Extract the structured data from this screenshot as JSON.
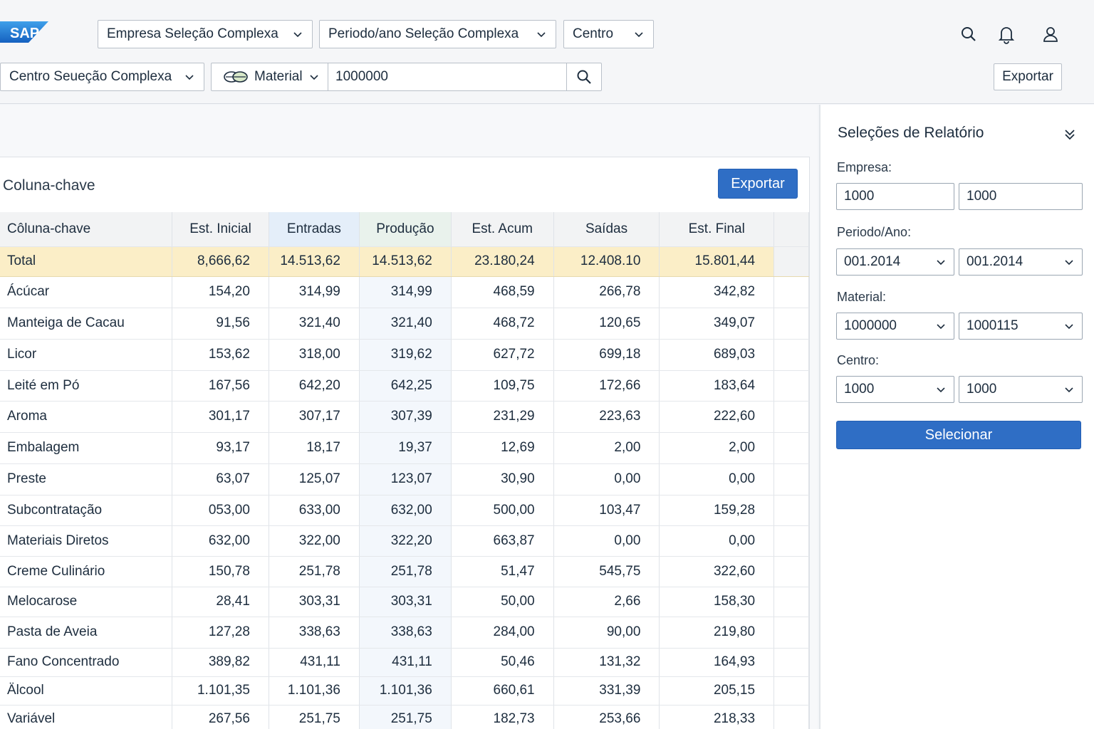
{
  "header": {
    "logo_text": "SAP",
    "filters": [
      {
        "label": "Empresa Seleção Complexa"
      },
      {
        "label": "Periodo/ano Seleção Complexa"
      },
      {
        "label": "Centro"
      }
    ],
    "center_filter": "Centro Seueção Complexa",
    "material_label": "Material",
    "material_value": "1000000",
    "export_label": "Exportar"
  },
  "main": {
    "title": "Coluna-chave",
    "export_label": "Exportar",
    "table": {
      "headers": [
        "Côluna-chave",
        "Est. Inicial",
        "Entradas",
        "Produção",
        "Est. Acum",
        "Saídas",
        "Est. Final"
      ],
      "total": [
        "Total",
        "8,666,62",
        "14.513,62",
        "14.513,62",
        "23.180,24",
        "12.408.10",
        "15.801,44"
      ],
      "rows": [
        [
          "Ácúcar",
          "154,20",
          "314,99",
          "314,99",
          "468,59",
          "266,78",
          "342,82"
        ],
        [
          "Manteiga de Cacau",
          "91,56",
          "321,40",
          "321,40",
          "468,72",
          "120,65",
          "349,07"
        ],
        [
          "Licor",
          "153,62",
          "318,00",
          "319,62",
          "627,72",
          "699,18",
          "689,03"
        ],
        [
          "Leité em Pó",
          "167,56",
          "642,20",
          "642,25",
          "109,75",
          "172,66",
          "183,64"
        ],
        [
          "Aroma",
          "301,17",
          "307,17",
          "307,39",
          "231,29",
          "223,63",
          "222,60"
        ],
        [
          "Embalagem",
          "93,17",
          "18,17",
          "19,37",
          "12,69",
          "2,00",
          "2,00"
        ],
        [
          "Preste",
          "63,07",
          "125,07",
          "123,07",
          "30,90",
          "0,00",
          "0,00"
        ],
        [
          "Subcontratação",
          "053,00",
          "633,00",
          "632,00",
          "500,00",
          "103,47",
          "159,28"
        ],
        [
          "Materiais Diretos",
          "632,00",
          "322,00",
          "322,20",
          "663,87",
          "0,00",
          "0,00"
        ],
        [
          "Creme Culinário",
          "150,78",
          "251,78",
          "251,78",
          "51,47",
          "545,75",
          "322,60"
        ],
        [
          "Melocarose",
          "28,41",
          "303,31",
          "303,31",
          "50,00",
          "2,66",
          "158,30"
        ],
        [
          "Pasta de Aveia",
          "127,28",
          "338,63",
          "338,63",
          "284,00",
          "90,00",
          "219,80"
        ],
        [
          "Fano Concentrado",
          "389,82",
          "431,11",
          "431,11",
          "50,46",
          "131,32",
          "164,93"
        ],
        [
          "Älcool",
          "1.101,35",
          "1.101,36",
          "1.101,36",
          "660,61",
          "331,39",
          "205,15"
        ],
        [
          "Variável",
          "267,56",
          "251,75",
          "251,75",
          "182,73",
          "253,66",
          "218,33"
        ]
      ]
    }
  },
  "side": {
    "title": "Seleções de Relatório",
    "empresa_label": "Empresa:",
    "empresa_from": "1000",
    "empresa_to": "1000",
    "periodo_label": "Periodo/Ano:",
    "periodo_from": "001.2014",
    "periodo_to": "001.2014",
    "material_label": "Material:",
    "material_from": "1000000",
    "material_to": "1000115",
    "centro_label": "Centro:",
    "centro_from": "1000",
    "centro_to": "1000",
    "select_label": "Selecionar"
  },
  "colors": {
    "primary": "#2f6ec5",
    "total_row": "#fbeec7",
    "sap_blue": "#1a73c8"
  },
  "icons": [
    "sap-logo",
    "chevron-down-icon",
    "search-icon",
    "bell-icon",
    "user-icon",
    "material-icon",
    "double-chevron-down-icon"
  ]
}
